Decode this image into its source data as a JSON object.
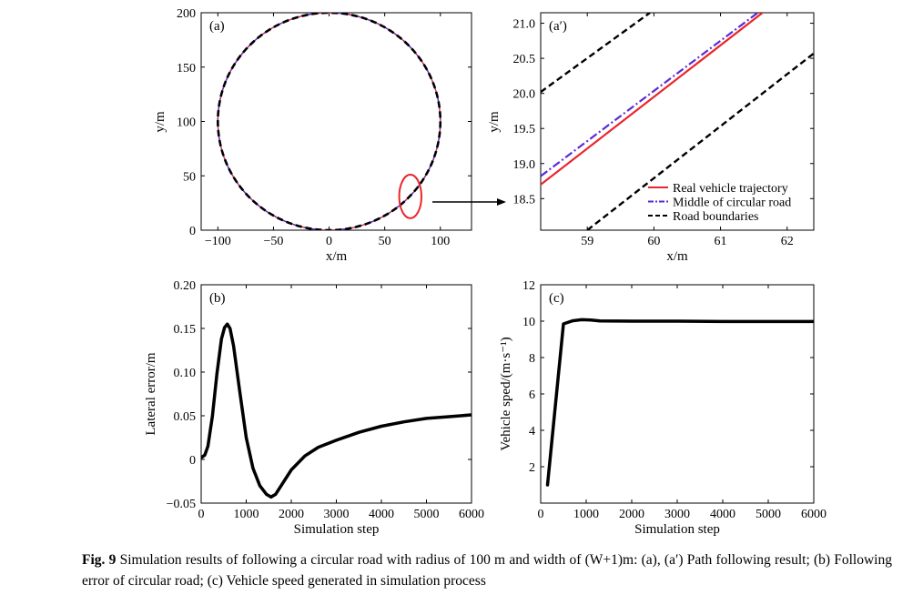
{
  "figure": {
    "caption_label": "Fig. 9",
    "caption_text": " Simulation results of following a circular road with radius of 100 m and width of (W+1)m: (a), (a′) Path following result; (b) Following error of circular road; (c) Vehicle speed generated in simulation process"
  },
  "chart_data": [
    {
      "id": "a",
      "type": "line",
      "panel_label": "(a)",
      "xlabel": "x/m",
      "ylabel": "y/m",
      "xlim": [
        -115,
        128
      ],
      "ylim": [
        0,
        200
      ],
      "xticks": [
        -100,
        -50,
        0,
        50,
        100
      ],
      "xtick_labels": [
        "−100",
        "−50",
        "0",
        "50",
        "100"
      ],
      "yticks": [
        0,
        50,
        100,
        150,
        200
      ],
      "ytick_labels": [
        "0",
        "50",
        "100",
        "150",
        "200"
      ],
      "circle": {
        "center": [
          0,
          100
        ],
        "radius": 100
      },
      "highlight_ellipse": {
        "center": [
          73,
          31
        ],
        "rx": 10,
        "ry": 20
      },
      "series": [
        {
          "name": "Real vehicle trajectory",
          "color": "#e8262b",
          "style": "solid"
        },
        {
          "name": "Middle of circular road",
          "color": "#5a2bd6",
          "style": "dashdot"
        },
        {
          "name": "Road boundaries",
          "color": "#000000",
          "style": "dashed"
        }
      ]
    },
    {
      "id": "a_prime",
      "type": "line",
      "panel_label": "(a′)",
      "xlabel": "x/m",
      "ylabel": "y/m",
      "xlim": [
        58.3,
        62.4
      ],
      "ylim": [
        18.05,
        21.15
      ],
      "xticks": [
        59,
        60,
        61,
        62
      ],
      "xtick_labels": [
        "59",
        "60",
        "61",
        "62"
      ],
      "yticks": [
        18.5,
        19.0,
        19.5,
        20.0,
        20.5,
        21.0
      ],
      "ytick_labels": [
        "18.5",
        "19.0",
        "19.5",
        "20.0",
        "20.5",
        "21.0"
      ],
      "series": [
        {
          "name": "Real vehicle trajectory",
          "color": "#e8262b",
          "style": "solid",
          "points": [
            [
              58.3,
              18.7
            ],
            [
              61.63,
              21.15
            ]
          ]
        },
        {
          "name": "Middle of circular road",
          "color": "#5a2bd6",
          "style": "dashdot",
          "points": [
            [
              58.3,
              18.82
            ],
            [
              61.56,
              21.15
            ]
          ]
        },
        {
          "name": "Road boundaries",
          "color": "#000000",
          "style": "dashed",
          "points": [
            [
              58.3,
              20.02
            ],
            [
              59.94,
              21.15
            ]
          ]
        },
        {
          "name": "Road boundaries",
          "color": "#000000",
          "style": "dashed",
          "points": [
            [
              59.0,
              18.05
            ],
            [
              62.4,
              20.57
            ]
          ],
          "hide_from_legend": true
        }
      ],
      "legend": {
        "placement": "bottom-right",
        "entries": [
          "Real vehicle trajectory",
          "Middle of circular road",
          "Road boundaries"
        ]
      }
    },
    {
      "id": "b",
      "type": "line",
      "panel_label": "(b)",
      "xlabel": "Simulation step",
      "ylabel": "Lateral error/m",
      "xlim": [
        0,
        6000
      ],
      "ylim": [
        -0.05,
        0.2
      ],
      "xticks": [
        0,
        1000,
        2000,
        3000,
        4000,
        5000,
        6000
      ],
      "xtick_labels": [
        "0",
        "1000",
        "2000",
        "3000",
        "4000",
        "5000",
        "6000"
      ],
      "yticks": [
        -0.05,
        0,
        0.05,
        0.1,
        0.15,
        0.2
      ],
      "ytick_labels": [
        "−0.05",
        "0",
        "0.05",
        "0.10",
        "0.15",
        "0.20"
      ],
      "series": [
        {
          "name": "Lateral error",
          "color": "#000000",
          "points": [
            [
              0,
              0.002
            ],
            [
              80,
              0.005
            ],
            [
              150,
              0.015
            ],
            [
              250,
              0.05
            ],
            [
              350,
              0.098
            ],
            [
              450,
              0.138
            ],
            [
              520,
              0.151
            ],
            [
              580,
              0.155
            ],
            [
              640,
              0.15
            ],
            [
              720,
              0.13
            ],
            [
              850,
              0.08
            ],
            [
              1000,
              0.025
            ],
            [
              1150,
              -0.01
            ],
            [
              1300,
              -0.03
            ],
            [
              1450,
              -0.04
            ],
            [
              1550,
              -0.043
            ],
            [
              1650,
              -0.04
            ],
            [
              1800,
              -0.028
            ],
            [
              2000,
              -0.012
            ],
            [
              2300,
              0.004
            ],
            [
              2600,
              0.014
            ],
            [
              3000,
              0.022
            ],
            [
              3500,
              0.031
            ],
            [
              4000,
              0.038
            ],
            [
              4500,
              0.043
            ],
            [
              5000,
              0.047
            ],
            [
              5500,
              0.049
            ],
            [
              6000,
              0.051
            ]
          ]
        }
      ]
    },
    {
      "id": "c",
      "type": "line",
      "panel_label": "(c)",
      "xlabel": "Simulation step",
      "ylabel": "Vehicle sped/(m·s⁻¹)",
      "xlim": [
        0,
        6000
      ],
      "ylim": [
        0,
        12
      ],
      "xticks": [
        0,
        1000,
        2000,
        3000,
        4000,
        5000,
        6000
      ],
      "xtick_labels": [
        "0",
        "1000",
        "2000",
        "3000",
        "4000",
        "5000",
        "6000"
      ],
      "yticks": [
        2,
        4,
        6,
        8,
        10,
        12
      ],
      "ytick_labels": [
        "2",
        "4",
        "6",
        "8",
        "10",
        "12"
      ],
      "series": [
        {
          "name": "Vehicle speed",
          "color": "#000000",
          "points": [
            [
              150,
              1.0
            ],
            [
              500,
              9.85
            ],
            [
              700,
              10.02
            ],
            [
              900,
              10.08
            ],
            [
              1100,
              10.06
            ],
            [
              1300,
              10.01
            ],
            [
              2000,
              10.0
            ],
            [
              3000,
              10.0
            ],
            [
              4000,
              9.98
            ],
            [
              5000,
              9.98
            ],
            [
              6000,
              9.98
            ]
          ]
        }
      ]
    }
  ]
}
